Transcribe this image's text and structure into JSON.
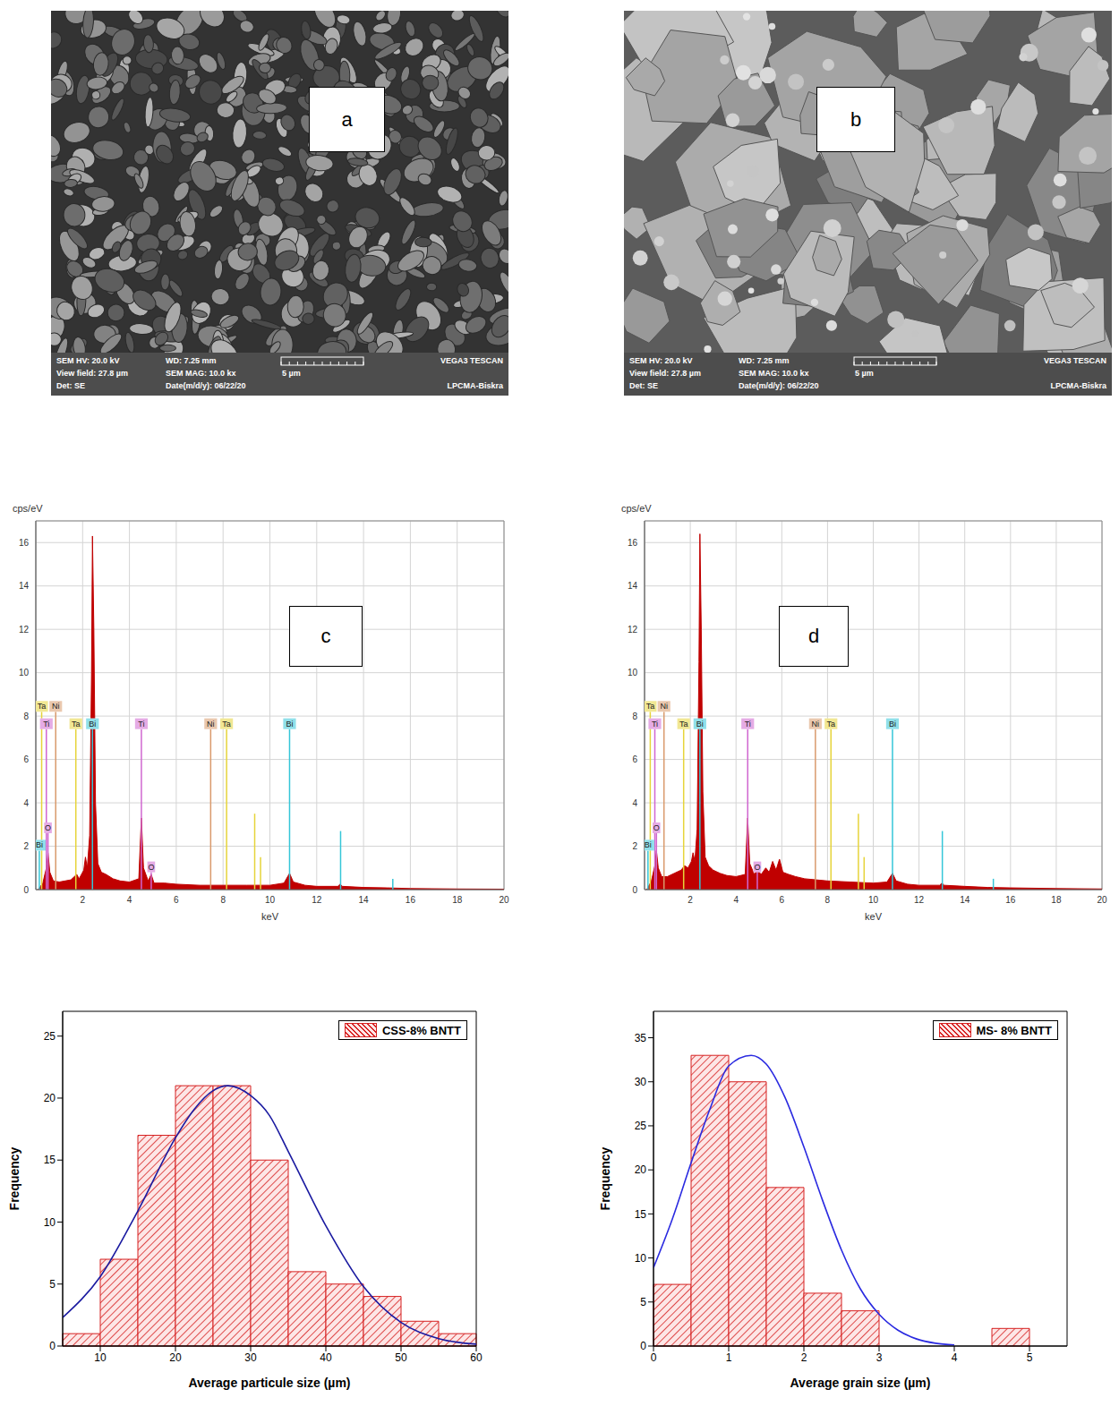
{
  "images": [
    {
      "panel": "a",
      "info": {
        "hv": "SEM HV: 20.0 kV",
        "wd": "WD: 7.25 mm",
        "brand": "VEGA3 TESCAN",
        "view_field": "View field: 27.8 µm",
        "mag": "SEM MAG: 10.0 kx",
        "scale": "5 µm",
        "detector": "Det: SE",
        "date": "Date(m/d/y): 06/22/20",
        "lab": "LPCMA-Biskra"
      }
    },
    {
      "panel": "b",
      "info": {
        "hv": "SEM HV: 20.0 kV",
        "wd": "WD: 7.25 mm",
        "brand": "VEGA3 TESCAN",
        "view_field": "View field: 27.8 µm",
        "mag": "SEM MAG: 10.0 kx",
        "scale": "5 µm",
        "detector": "Det: SE",
        "date": "Date(m/d/y): 06/22/20",
        "lab": "LPCMA-Biskra"
      }
    }
  ],
  "chart_data": [
    {
      "type": "area",
      "panel": "c",
      "x_label": "keV",
      "y_label": "cps/eV",
      "color": "#c00000",
      "grid": true,
      "xlim": [
        0,
        20
      ],
      "xticks": [
        2,
        4,
        6,
        8,
        10,
        12,
        14,
        16,
        18,
        20
      ],
      "ylim": [
        0,
        17
      ],
      "yticks": [
        0,
        2,
        4,
        6,
        8,
        10,
        12,
        14,
        16
      ],
      "x": [
        0.1,
        0.3,
        0.45,
        0.52,
        0.6,
        0.75,
        1.0,
        1.5,
        1.75,
        1.85,
        2.05,
        2.12,
        2.2,
        2.3,
        2.38,
        2.42,
        2.48,
        2.55,
        2.65,
        2.8,
        3.0,
        3.3,
        3.6,
        4.0,
        4.4,
        4.51,
        4.6,
        4.8,
        4.93,
        5.05,
        5.5,
        6.0,
        7.0,
        8.0,
        9.0,
        10.0,
        10.6,
        10.84,
        11.0,
        11.5,
        12.0,
        12.9,
        13.0,
        13.1,
        14.0,
        15.0,
        16.0,
        18.0,
        20.0
      ],
      "values": [
        0,
        0.3,
        1.0,
        1.7,
        0.8,
        0.4,
        0.35,
        0.45,
        0.7,
        0.5,
        0.9,
        1.5,
        1.0,
        2.5,
        10.0,
        16.3,
        12.0,
        4.0,
        1.2,
        0.8,
        0.7,
        0.5,
        0.4,
        0.35,
        0.5,
        3.3,
        1.0,
        0.4,
        0.7,
        0.3,
        0.3,
        0.25,
        0.2,
        0.2,
        0.2,
        0.2,
        0.3,
        0.75,
        0.35,
        0.2,
        0.15,
        0.15,
        0.25,
        0.15,
        0.1,
        0.08,
        0.05,
        0.03,
        0.02
      ],
      "markers": [
        {
          "label": "Bi",
          "x": 0.15,
          "height": 1.8,
          "color": "#35c6d8"
        },
        {
          "label": "Ta",
          "x": 0.25,
          "height": 8.2,
          "color": "#e6d43a"
        },
        {
          "label": "Ti",
          "x": 0.45,
          "height": 7.4,
          "color": "#d066d0"
        },
        {
          "label": "O",
          "x": 0.52,
          "height": 2.6,
          "color": "#d066d0"
        },
        {
          "label": "Ni",
          "x": 0.85,
          "height": 8.2,
          "color": "#d99a6c"
        },
        {
          "label": "Ta",
          "x": 1.71,
          "height": 7.4,
          "color": "#e6d43a"
        },
        {
          "label": "Bi",
          "x": 2.42,
          "height": 7.4,
          "color": "#35c6d8"
        },
        {
          "label": "Ti",
          "x": 4.51,
          "height": 7.4,
          "color": "#d066d0"
        },
        {
          "label": "O",
          "x": 4.93,
          "height": 0.8,
          "color": "#d066d0"
        },
        {
          "label": "Ni",
          "x": 7.47,
          "height": 7.4,
          "color": "#d99a6c"
        },
        {
          "label": "Ta",
          "x": 8.15,
          "height": 7.4,
          "color": "#e6d43a"
        },
        {
          "label": "Bi",
          "x": 10.84,
          "height": 7.4,
          "color": "#35c6d8"
        },
        {
          "x": 9.35,
          "height": 3.5,
          "color": "#e6d43a"
        },
        {
          "x": 9.6,
          "height": 1.5,
          "color": "#e6d43a"
        },
        {
          "x": 13.02,
          "height": 2.7,
          "color": "#35c6d8"
        },
        {
          "x": 15.25,
          "height": 0.5,
          "color": "#35c6d8"
        }
      ]
    },
    {
      "type": "area",
      "panel": "d",
      "x_label": "keV",
      "y_label": "cps/eV",
      "color": "#c00000",
      "grid": true,
      "xlim": [
        0,
        20
      ],
      "xticks": [
        2,
        4,
        6,
        8,
        10,
        12,
        14,
        16,
        18,
        20
      ],
      "ylim": [
        0,
        17
      ],
      "yticks": [
        0,
        2,
        4,
        6,
        8,
        10,
        12,
        14,
        16
      ],
      "x": [
        0.1,
        0.3,
        0.45,
        0.52,
        0.6,
        0.75,
        1.0,
        1.3,
        1.6,
        1.75,
        1.9,
        2.05,
        2.12,
        2.2,
        2.3,
        2.38,
        2.42,
        2.48,
        2.55,
        2.65,
        2.8,
        3.0,
        3.3,
        3.6,
        4.0,
        4.4,
        4.51,
        4.6,
        4.8,
        4.93,
        5.1,
        5.3,
        5.45,
        5.6,
        5.75,
        5.9,
        6.05,
        6.3,
        6.6,
        7.0,
        7.5,
        8.0,
        9.0,
        10.0,
        10.6,
        10.84,
        11.0,
        11.5,
        12.0,
        12.9,
        13.0,
        13.1,
        14.0,
        15.0,
        16.0,
        18.0,
        20.0
      ],
      "values": [
        0,
        0.4,
        1.1,
        1.8,
        1.0,
        0.6,
        0.6,
        0.75,
        0.9,
        1.1,
        1.0,
        1.3,
        1.7,
        1.3,
        2.8,
        10.5,
        16.4,
        12.0,
        4.5,
        1.5,
        1.1,
        0.9,
        0.75,
        0.65,
        0.6,
        0.7,
        3.3,
        1.2,
        0.7,
        0.9,
        0.7,
        1.0,
        0.8,
        1.3,
        0.9,
        1.4,
        0.8,
        0.7,
        0.6,
        0.5,
        0.45,
        0.4,
        0.35,
        0.3,
        0.35,
        0.75,
        0.4,
        0.25,
        0.2,
        0.2,
        0.3,
        0.2,
        0.15,
        0.1,
        0.08,
        0.05,
        0.03
      ],
      "markers": [
        {
          "label": "Bi",
          "x": 0.15,
          "height": 1.8,
          "color": "#35c6d8"
        },
        {
          "label": "Ta",
          "x": 0.25,
          "height": 8.2,
          "color": "#e6d43a"
        },
        {
          "label": "Ti",
          "x": 0.45,
          "height": 7.4,
          "color": "#d066d0"
        },
        {
          "label": "O",
          "x": 0.52,
          "height": 2.6,
          "color": "#d066d0"
        },
        {
          "label": "Ni",
          "x": 0.85,
          "height": 8.2,
          "color": "#d99a6c"
        },
        {
          "label": "Ta",
          "x": 1.71,
          "height": 7.4,
          "color": "#e6d43a"
        },
        {
          "label": "Bi",
          "x": 2.42,
          "height": 7.4,
          "color": "#35c6d8"
        },
        {
          "label": "Ti",
          "x": 4.51,
          "height": 7.4,
          "color": "#d066d0"
        },
        {
          "label": "O",
          "x": 4.93,
          "height": 0.8,
          "color": "#d066d0"
        },
        {
          "label": "Ni",
          "x": 7.47,
          "height": 7.4,
          "color": "#d99a6c"
        },
        {
          "label": "Ta",
          "x": 8.15,
          "height": 7.4,
          "color": "#e6d43a"
        },
        {
          "label": "Bi",
          "x": 10.84,
          "height": 7.4,
          "color": "#35c6d8"
        },
        {
          "x": 9.35,
          "height": 3.5,
          "color": "#e6d43a"
        },
        {
          "x": 9.6,
          "height": 1.5,
          "color": "#e6d43a"
        },
        {
          "x": 13.02,
          "height": 2.7,
          "color": "#35c6d8"
        },
        {
          "x": 15.25,
          "height": 0.5,
          "color": "#35c6d8"
        }
      ]
    },
    {
      "type": "histogram",
      "name": "CSS-8% BNTT",
      "legend": "upper right",
      "color": "#d62020",
      "x_label": "Average particule size (µm)",
      "y_label": "Frequency",
      "xlim": [
        5,
        60
      ],
      "xticks": [
        10,
        20,
        30,
        40,
        50,
        60
      ],
      "ylim": [
        0,
        27
      ],
      "yticks": [
        0,
        5,
        10,
        15,
        20,
        25
      ],
      "bins": [
        5,
        10,
        15,
        20,
        25,
        30,
        35,
        40,
        45,
        50,
        55,
        60
      ],
      "counts": [
        1,
        7,
        17,
        21,
        21,
        15,
        6,
        5,
        4,
        2,
        1
      ],
      "fit": {
        "color": "#1a1aa0",
        "x": [
          5,
          10,
          15,
          20,
          22.5,
          25,
          27,
          30,
          32.5,
          35,
          40,
          45,
          50,
          55,
          60
        ],
        "y": [
          2.3,
          5.6,
          10.9,
          16.8,
          19.1,
          20.6,
          21,
          20.2,
          18.6,
          15.7,
          9.7,
          4.8,
          1.9,
          0.6,
          0.15
        ]
      }
    },
    {
      "type": "histogram",
      "name": "MS- 8% BNTT",
      "legend": "upper right",
      "color": "#d62020",
      "x_label": "Average grain size (µm)",
      "y_label": "Frequency",
      "xlim": [
        0,
        5.5
      ],
      "xticks": [
        0,
        1,
        2,
        3,
        4,
        5
      ],
      "ylim": [
        0,
        38
      ],
      "yticks": [
        0,
        5,
        10,
        15,
        20,
        25,
        30,
        35
      ],
      "bins": [
        0,
        0.5,
        1,
        1.5,
        2,
        2.5,
        3,
        3.5,
        4,
        4.5,
        5
      ],
      "counts": [
        7,
        33,
        30,
        18,
        6,
        4,
        0,
        0,
        0,
        2
      ],
      "fit": {
        "color": "#2a2ae0",
        "x": [
          0,
          0.25,
          0.5,
          0.75,
          1.0,
          1.3,
          1.5,
          1.75,
          2.0,
          2.25,
          2.5,
          2.75,
          3.0,
          3.25,
          3.5,
          3.75,
          4.0
        ],
        "y": [
          8.9,
          14.4,
          20.8,
          26.9,
          31.8,
          33,
          32.0,
          28.2,
          22.6,
          16.5,
          10.9,
          6.5,
          3.6,
          1.8,
          0.8,
          0.32,
          0.12
        ]
      }
    }
  ]
}
